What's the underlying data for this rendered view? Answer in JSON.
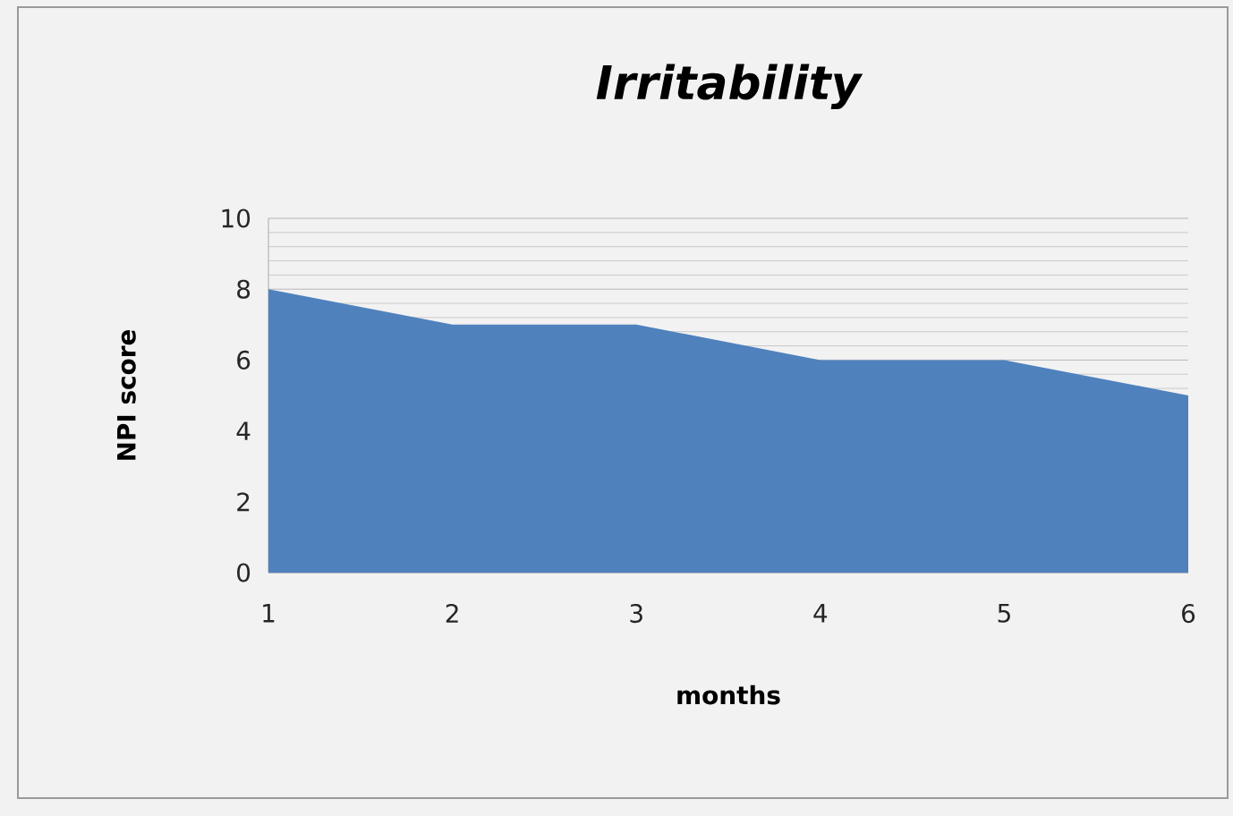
{
  "chart_data": {
    "type": "area",
    "title": "Irritability",
    "xlabel": "months",
    "ylabel": "NPI score",
    "categories": [
      "1",
      "2",
      "3",
      "4",
      "5",
      "6"
    ],
    "series": [
      {
        "color": "#4f81bd",
        "values": [
          8,
          7,
          7,
          6,
          6,
          5
        ]
      }
    ],
    "ylim": [
      0,
      10
    ],
    "yticks": [
      0,
      2,
      4,
      6,
      8,
      10
    ],
    "grid": "y"
  }
}
